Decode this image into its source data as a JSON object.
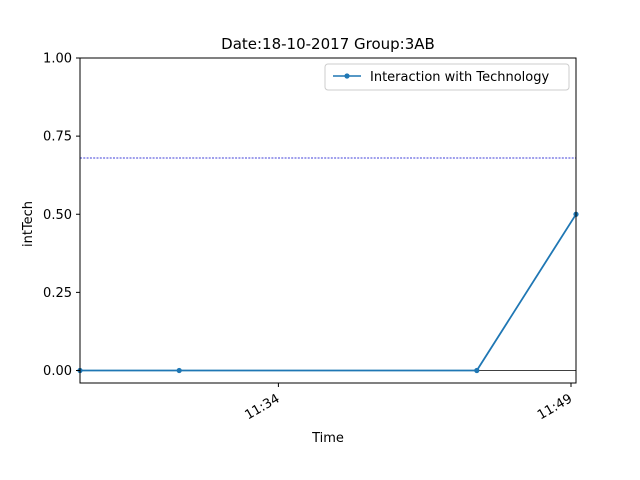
{
  "chart_data": {
    "type": "line",
    "title": "Date:18-10-2017  Group:3AB",
    "xlabel": "Time",
    "ylabel": "intTech",
    "x_is_time": true,
    "xlim": [
      "11:24",
      "11:49"
    ],
    "ylim": [
      -0.04,
      1.0
    ],
    "y_ticks": [
      0.0,
      0.25,
      0.5,
      0.75,
      1.0
    ],
    "y_tick_labels": [
      "0.00",
      "0.25",
      "0.50",
      "0.75",
      "1.00"
    ],
    "x_ticks": [
      "11:34",
      "11:49"
    ],
    "x_tick_labels": [
      "11:34",
      "11:49"
    ],
    "legend_position": "top-right",
    "grid": false,
    "series": [
      {
        "name": "Interaction with Technology",
        "color": "#1f77b4",
        "x": [
          "11:24",
          "11:29",
          "11:44",
          "11:49"
        ],
        "values": [
          0.0,
          0.0,
          0.0,
          0.5
        ]
      }
    ],
    "reference_lines": [
      {
        "y": 0.68,
        "color": "#0000cc",
        "style": "dotted"
      },
      {
        "y": 0.0,
        "color": "#000000",
        "style": "solid"
      }
    ]
  }
}
